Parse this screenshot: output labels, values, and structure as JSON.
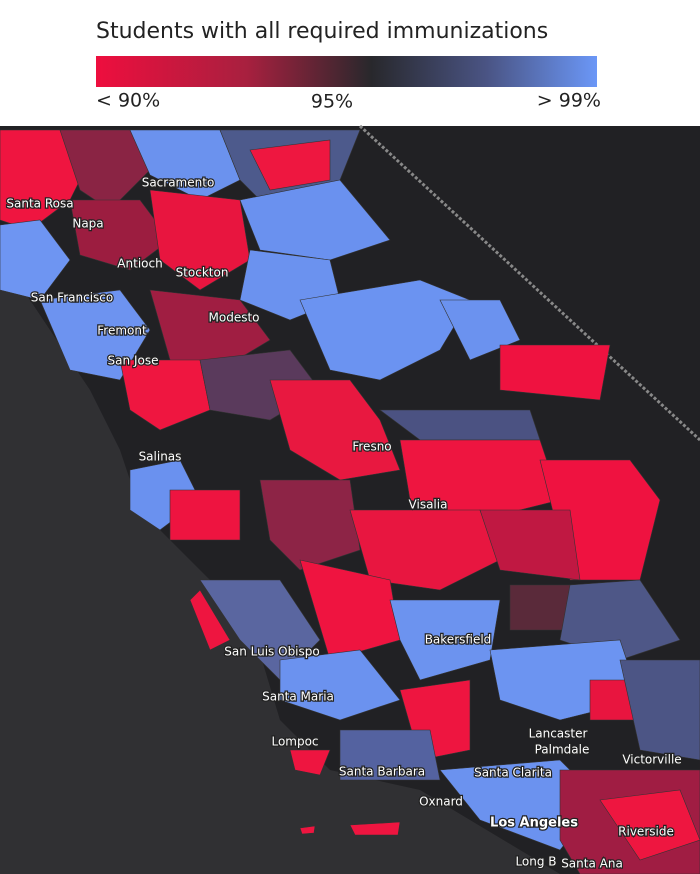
{
  "legend": {
    "title": "Students with all required immunizations",
    "labels": [
      "< 90%",
      "95%",
      "> 99%"
    ]
  },
  "map": {
    "cities": [
      "Sacramento",
      "Santa Rosa",
      "Napa",
      "Antioch",
      "Stockton",
      "San Francisco",
      "Modesto",
      "Fremont",
      "San Jose",
      "Fresno",
      "Salinas",
      "Visalia",
      "Bakersfield",
      "San Luis Obispo",
      "Santa Maria",
      "Lompoc",
      "Lancaster",
      "Palmdale",
      "Victorville",
      "Santa Barbara",
      "Santa Clarita",
      "Oxnard",
      "Los Angeles",
      "Riverside",
      "Long B",
      "Santa Ana"
    ]
  }
}
